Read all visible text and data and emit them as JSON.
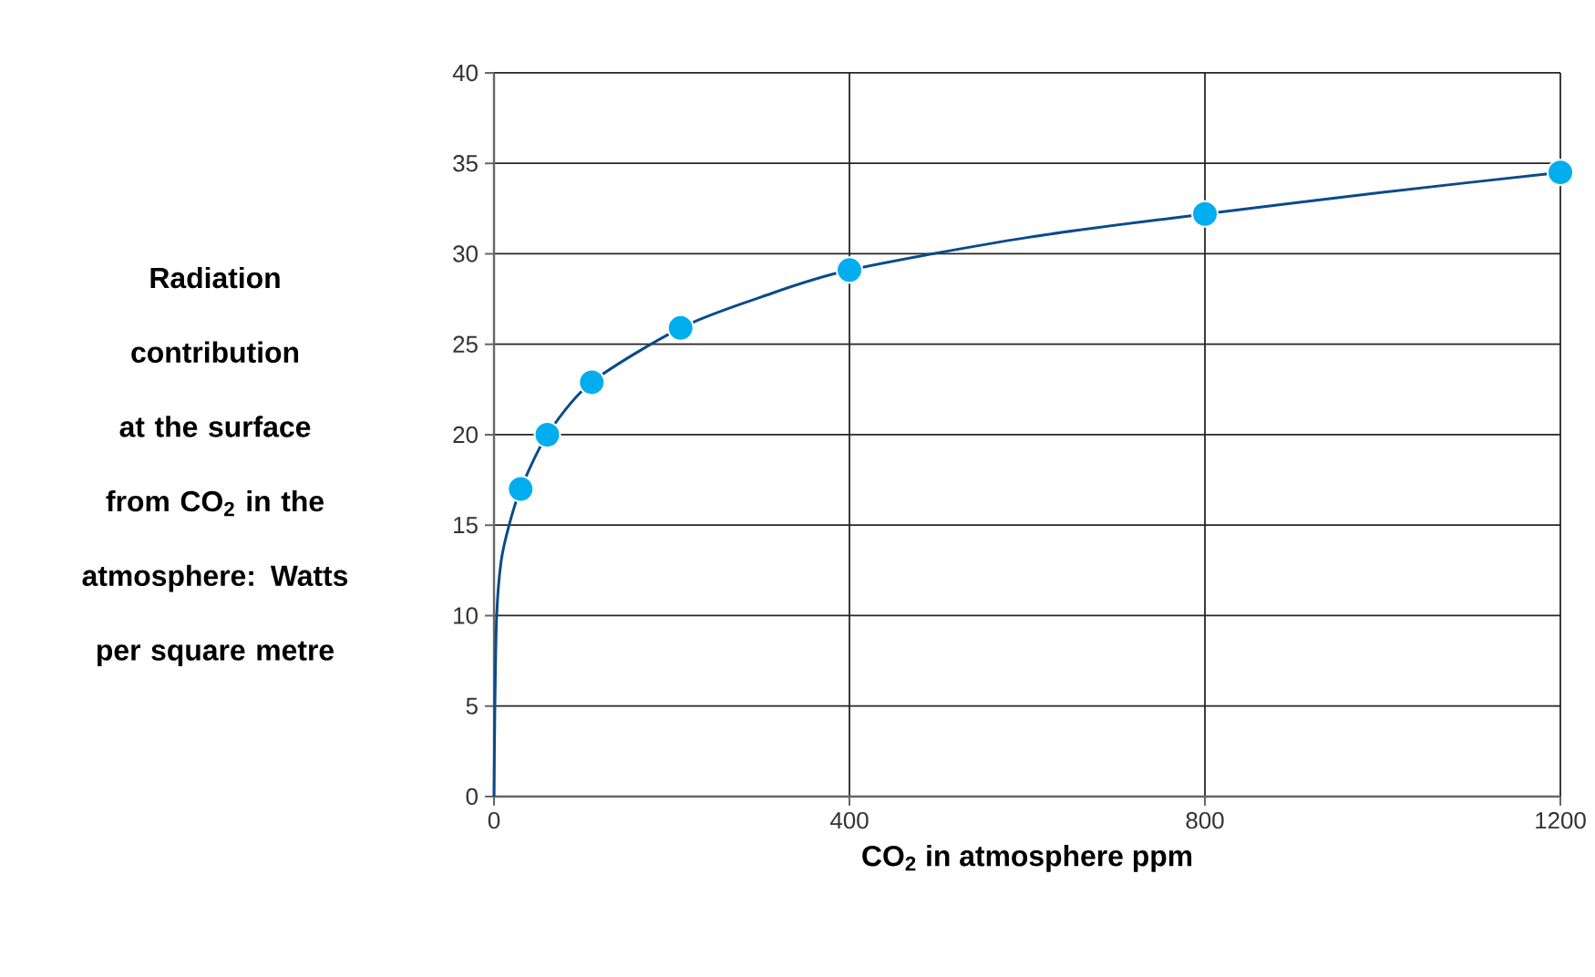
{
  "chart_data": {
    "type": "line",
    "xlabel": "CO$_{2}$ in atmosphere ppm",
    "ylabel": "Radiation contribution at the surface from CO$_{2}$ in the atmosphere: Watts per square metre",
    "xlim": [
      0,
      1200
    ],
    "ylim": [
      0,
      40
    ],
    "xticks": [
      0,
      400,
      800,
      1200
    ],
    "yticks": [
      0,
      5,
      10,
      15,
      20,
      25,
      30,
      35,
      40
    ],
    "grid": true,
    "series": [
      {
        "color": "#0a4a8a",
        "marker": "none",
        "x": [
          0,
          1,
          3,
          8,
          17,
          30,
          60,
          110,
          210,
          300,
          400,
          600,
          800,
          1000,
          1200
        ],
        "values": [
          0,
          5,
          10,
          13,
          15,
          17,
          20,
          22.9,
          25.9,
          27.6,
          29.1,
          30.9,
          32.2,
          33.4,
          34.5
        ]
      },
      {
        "type": "scatter",
        "color": "#00aeef",
        "marker": "circle",
        "x": [
          30,
          60,
          110,
          210,
          400,
          800,
          1200
        ],
        "values": [
          17,
          20,
          22.9,
          25.9,
          29.1,
          32.2,
          34.5
        ]
      }
    ]
  }
}
